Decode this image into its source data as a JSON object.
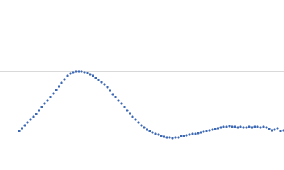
{
  "chart_data": {
    "type": "scatter",
    "color": "#3d68b4",
    "grid": true,
    "xlim": [
      0,
      400
    ],
    "ylim": [
      0,
      200
    ],
    "xticks": [
      115
    ],
    "yticks": [
      100
    ],
    "x": [
      27,
      31,
      35,
      39,
      43,
      47,
      51,
      55,
      59,
      63,
      67,
      71,
      75,
      79,
      83,
      87,
      91,
      95,
      99,
      103,
      107,
      111,
      115,
      119,
      123,
      127,
      131,
      135,
      139,
      143,
      147,
      151,
      155,
      159,
      163,
      167,
      171,
      175,
      179,
      183,
      187,
      191,
      195,
      199,
      203,
      207,
      211,
      215,
      219,
      223,
      227,
      231,
      235,
      239,
      243,
      247,
      251,
      255,
      259,
      263,
      267,
      271,
      275,
      279,
      283,
      287,
      291,
      295,
      299,
      303,
      307,
      311,
      315,
      319,
      323,
      327,
      331,
      335,
      339,
      343,
      347,
      351,
      355,
      359,
      363,
      367,
      371,
      375,
      379,
      383,
      387,
      391,
      395,
      399
    ],
    "values": [
      15,
      19,
      23,
      27,
      31,
      35,
      39,
      44,
      49,
      54,
      58,
      63,
      68,
      73,
      78,
      83,
      88,
      93,
      96,
      98,
      99,
      99,
      99,
      98,
      97,
      95,
      93,
      90,
      87,
      84,
      81,
      77,
      72,
      67,
      63,
      58,
      54,
      49,
      44,
      40,
      35,
      31,
      27,
      23,
      20,
      17,
      15,
      13,
      11,
      10,
      8,
      7,
      6,
      6,
      5,
      6,
      6,
      8,
      8,
      9,
      10,
      11,
      11,
      12,
      13,
      14,
      15,
      16,
      17,
      18,
      19,
      20,
      21,
      21,
      22,
      21,
      21,
      20,
      21,
      20,
      20,
      21,
      20,
      21,
      21,
      20,
      21,
      20,
      18,
      16,
      17,
      19,
      15,
      16
    ]
  }
}
